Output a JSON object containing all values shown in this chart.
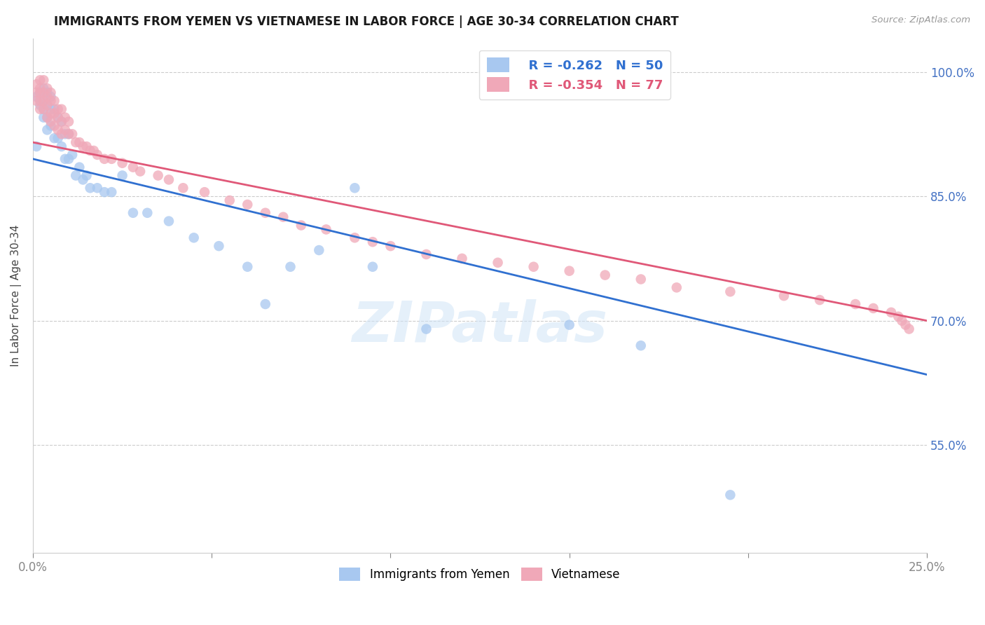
{
  "title": "IMMIGRANTS FROM YEMEN VS VIETNAMESE IN LABOR FORCE | AGE 30-34 CORRELATION CHART",
  "source": "Source: ZipAtlas.com",
  "ylabel": "In Labor Force | Age 30-34",
  "ytick_labels": [
    "100.0%",
    "85.0%",
    "70.0%",
    "55.0%"
  ],
  "ytick_values": [
    1.0,
    0.85,
    0.7,
    0.55
  ],
  "xlim": [
    0.0,
    0.25
  ],
  "ylim": [
    0.42,
    1.04
  ],
  "legend_blue_r": "-0.262",
  "legend_blue_n": "50",
  "legend_pink_r": "-0.354",
  "legend_pink_n": "77",
  "blue_color": "#A8C8F0",
  "pink_color": "#F0A8B8",
  "blue_line_color": "#3070D0",
  "pink_line_color": "#E05878",
  "watermark": "ZIPatlas",
  "blue_line_x0": 0.0,
  "blue_line_y0": 0.895,
  "blue_line_x1": 0.25,
  "blue_line_y1": 0.635,
  "pink_line_x0": 0.0,
  "pink_line_y0": 0.915,
  "pink_line_x1": 0.25,
  "pink_line_y1": 0.7,
  "blue_points_x": [
    0.001,
    0.001,
    0.002,
    0.002,
    0.003,
    0.003,
    0.003,
    0.003,
    0.004,
    0.004,
    0.004,
    0.004,
    0.005,
    0.005,
    0.005,
    0.006,
    0.006,
    0.007,
    0.007,
    0.008,
    0.008,
    0.009,
    0.009,
    0.01,
    0.01,
    0.011,
    0.012,
    0.013,
    0.014,
    0.015,
    0.016,
    0.018,
    0.02,
    0.022,
    0.025,
    0.028,
    0.032,
    0.038,
    0.045,
    0.052,
    0.06,
    0.065,
    0.072,
    0.08,
    0.09,
    0.095,
    0.11,
    0.15,
    0.17,
    0.195
  ],
  "blue_points_y": [
    0.97,
    0.91,
    0.975,
    0.96,
    0.98,
    0.965,
    0.955,
    0.945,
    0.975,
    0.96,
    0.945,
    0.93,
    0.97,
    0.955,
    0.935,
    0.955,
    0.92,
    0.945,
    0.92,
    0.94,
    0.91,
    0.925,
    0.895,
    0.925,
    0.895,
    0.9,
    0.875,
    0.885,
    0.87,
    0.875,
    0.86,
    0.86,
    0.855,
    0.855,
    0.875,
    0.83,
    0.83,
    0.82,
    0.8,
    0.79,
    0.765,
    0.72,
    0.765,
    0.785,
    0.86,
    0.765,
    0.69,
    0.695,
    0.67,
    0.49
  ],
  "pink_points_x": [
    0.001,
    0.001,
    0.001,
    0.002,
    0.002,
    0.002,
    0.002,
    0.002,
    0.003,
    0.003,
    0.003,
    0.003,
    0.004,
    0.004,
    0.004,
    0.004,
    0.005,
    0.005,
    0.005,
    0.005,
    0.006,
    0.006,
    0.006,
    0.007,
    0.007,
    0.007,
    0.008,
    0.008,
    0.008,
    0.009,
    0.009,
    0.01,
    0.01,
    0.011,
    0.012,
    0.013,
    0.014,
    0.015,
    0.016,
    0.017,
    0.018,
    0.02,
    0.022,
    0.025,
    0.028,
    0.03,
    0.035,
    0.038,
    0.042,
    0.048,
    0.055,
    0.06,
    0.065,
    0.07,
    0.075,
    0.082,
    0.09,
    0.095,
    0.1,
    0.11,
    0.12,
    0.13,
    0.14,
    0.15,
    0.16,
    0.17,
    0.18,
    0.195,
    0.21,
    0.22,
    0.23,
    0.235,
    0.24,
    0.242,
    0.243,
    0.244,
    0.245
  ],
  "pink_points_y": [
    0.985,
    0.975,
    0.965,
    0.99,
    0.98,
    0.975,
    0.965,
    0.955,
    0.99,
    0.975,
    0.965,
    0.955,
    0.98,
    0.97,
    0.96,
    0.945,
    0.975,
    0.965,
    0.95,
    0.94,
    0.965,
    0.95,
    0.935,
    0.955,
    0.945,
    0.93,
    0.955,
    0.94,
    0.925,
    0.945,
    0.93,
    0.94,
    0.925,
    0.925,
    0.915,
    0.915,
    0.91,
    0.91,
    0.905,
    0.905,
    0.9,
    0.895,
    0.895,
    0.89,
    0.885,
    0.88,
    0.875,
    0.87,
    0.86,
    0.855,
    0.845,
    0.84,
    0.83,
    0.825,
    0.815,
    0.81,
    0.8,
    0.795,
    0.79,
    0.78,
    0.775,
    0.77,
    0.765,
    0.76,
    0.755,
    0.75,
    0.74,
    0.735,
    0.73,
    0.725,
    0.72,
    0.715,
    0.71,
    0.705,
    0.7,
    0.695,
    0.69
  ]
}
